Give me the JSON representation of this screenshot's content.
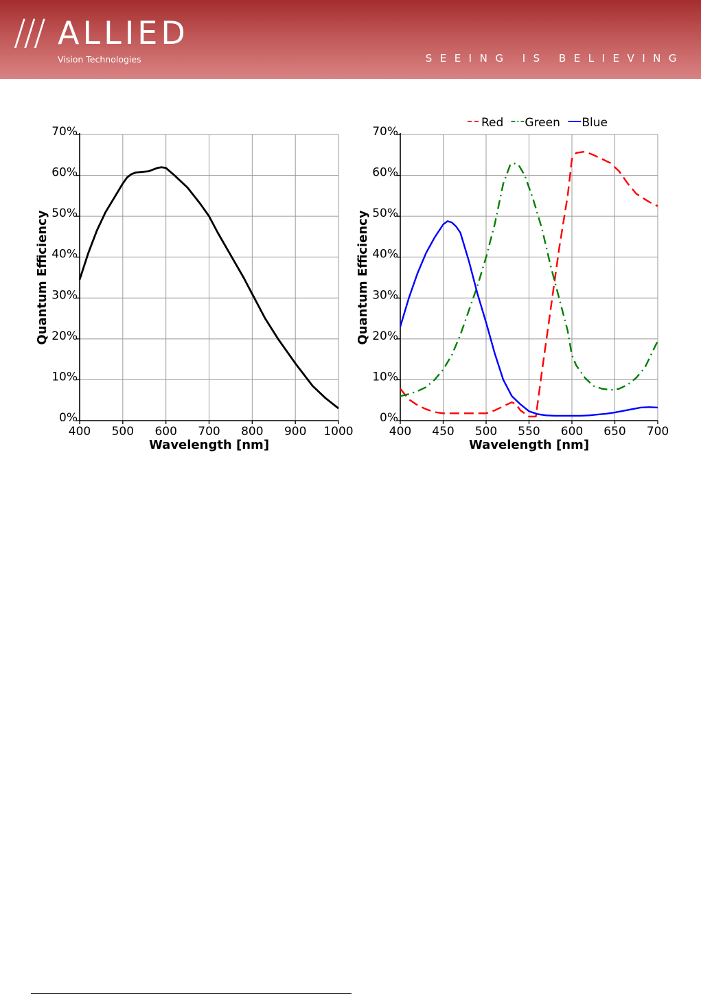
{
  "header": {
    "logo_slashes": "///",
    "logo_name": "ALLIED",
    "logo_subtitle": "Vision Technologies",
    "slogan": "SEEING IS BELIEVING"
  },
  "chart_data": [
    {
      "type": "line",
      "title": "",
      "xlabel": "Wavelength [nm]",
      "ylabel": "Quantum Efficiency",
      "xlim": [
        400,
        1000
      ],
      "ylim": [
        0,
        70
      ],
      "xticks": [
        "400",
        "500",
        "600",
        "700",
        "800",
        "900",
        "1000"
      ],
      "yticks": [
        "0%",
        "10%",
        "20%",
        "30%",
        "40%",
        "50%",
        "60%",
        "70%"
      ],
      "grid": true,
      "legend": "none",
      "series": [
        {
          "color": "#000000",
          "dash": "solid",
          "x": [
            400,
            420,
            440,
            460,
            480,
            500,
            510,
            520,
            530,
            540,
            560,
            580,
            590,
            600,
            620,
            650,
            680,
            700,
            720,
            750,
            780,
            800,
            830,
            860,
            900,
            940,
            970,
            1000
          ],
          "y": [
            34.5,
            41,
            46.5,
            51,
            54.5,
            58,
            59.5,
            60.3,
            60.7,
            60.8,
            61.0,
            61.8,
            62.0,
            61.8,
            60.0,
            57.0,
            53.0,
            50.0,
            46.0,
            40.5,
            35.0,
            31.0,
            25.0,
            20.0,
            14.0,
            8.5,
            5.5,
            3.0
          ]
        }
      ]
    },
    {
      "type": "line",
      "title": "",
      "xlabel": "Wavelength [nm]",
      "ylabel": "Quantum Efficiency",
      "xlim": [
        400,
        700
      ],
      "ylim": [
        0,
        70
      ],
      "xticks": [
        "400",
        "450",
        "500",
        "550",
        "600",
        "650",
        "700"
      ],
      "yticks": [
        "0%",
        "10%",
        "20%",
        "30%",
        "40%",
        "50%",
        "60%",
        "70%"
      ],
      "grid": true,
      "legend": "top",
      "series": [
        {
          "name": "Red",
          "color": "#ff0000",
          "dash": "dashed",
          "x": [
            400,
            410,
            420,
            430,
            440,
            450,
            460,
            470,
            480,
            490,
            500,
            510,
            520,
            530,
            535,
            540,
            550,
            558,
            565,
            575,
            585,
            595,
            600,
            605,
            615,
            625,
            635,
            645,
            655,
            665,
            675,
            690,
            700
          ],
          "y": [
            7.8,
            5.2,
            3.8,
            2.8,
            2.1,
            1.8,
            1.8,
            1.8,
            1.8,
            1.8,
            1.8,
            2.5,
            3.5,
            4.5,
            4.0,
            2.5,
            1.0,
            1.0,
            12,
            27,
            42,
            55,
            64,
            65.5,
            65.8,
            65,
            64,
            63,
            61,
            58,
            55.5,
            53.5,
            52.5
          ]
        },
        {
          "name": "Green",
          "color": "#008000",
          "dash": "dashdot",
          "x": [
            400,
            410,
            420,
            430,
            440,
            450,
            460,
            470,
            480,
            490,
            500,
            510,
            520,
            528,
            532,
            538,
            545,
            555,
            565,
            575,
            585,
            595,
            600,
            605,
            615,
            625,
            635,
            645,
            655,
            665,
            675,
            685,
            700
          ],
          "y": [
            6.0,
            6.5,
            7.2,
            8.2,
            10.0,
            12.5,
            16.0,
            21.0,
            27.0,
            33.0,
            40.0,
            48.0,
            58.0,
            62.5,
            63.0,
            62.5,
            60.0,
            54.0,
            47.0,
            38.0,
            30.0,
            22.0,
            16.0,
            13.5,
            10.5,
            8.5,
            7.8,
            7.5,
            7.8,
            8.8,
            10.5,
            13.0,
            19.5
          ]
        },
        {
          "name": "Blue",
          "color": "#0000ff",
          "dash": "solid",
          "x": [
            400,
            410,
            420,
            430,
            440,
            450,
            455,
            460,
            465,
            470,
            480,
            490,
            500,
            510,
            520,
            530,
            540,
            550,
            560,
            570,
            580,
            590,
            600,
            610,
            620,
            630,
            640,
            650,
            660,
            670,
            680,
            690,
            700
          ],
          "y": [
            23,
            30,
            36,
            41,
            44.8,
            48.0,
            48.8,
            48.5,
            47.5,
            46.0,
            39.0,
            31.0,
            24.0,
            16.5,
            10.0,
            6.0,
            4.0,
            2.3,
            1.6,
            1.3,
            1.2,
            1.2,
            1.2,
            1.2,
            1.3,
            1.5,
            1.7,
            2.0,
            2.4,
            2.8,
            3.2,
            3.3,
            3.2
          ]
        }
      ]
    }
  ]
}
